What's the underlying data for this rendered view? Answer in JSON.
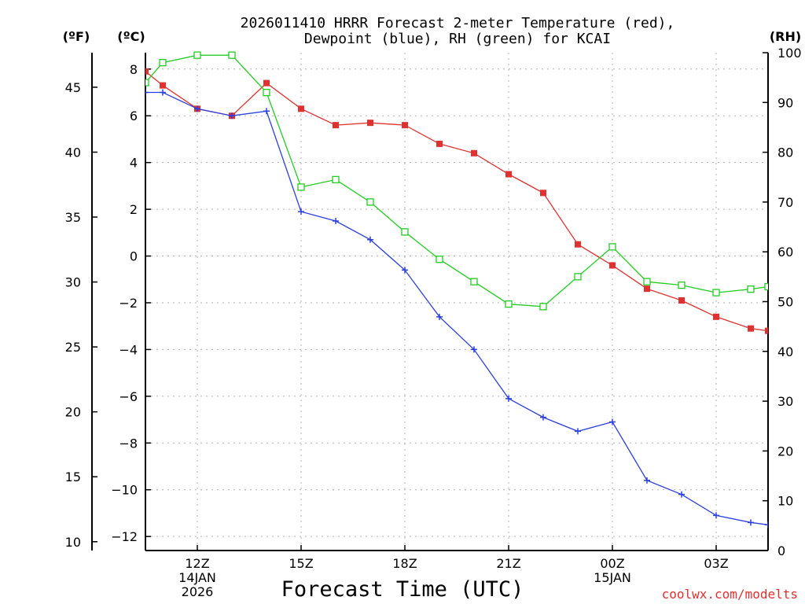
{
  "chart_data": {
    "type": "line",
    "title_lines": [
      "2026011410 HRRR Forecast 2-meter Temperature (red),",
      "Dewpoint (blue), RH (green) for KCAI"
    ],
    "xlabel": "Forecast Time (UTC)",
    "credit": "coolwx.com/modelts",
    "unit_labels": {
      "fahrenheit": "(ºF)",
      "celsius": "(ºC)",
      "rh": "(RH)"
    },
    "x_range": [
      10.5,
      28.5
    ],
    "celsius_range": [
      -12.6,
      8.7
    ],
    "rh_range": [
      0,
      100
    ],
    "left_f_ticks": [
      "10",
      "15",
      "20",
      "25",
      "30",
      "35",
      "40",
      "45"
    ],
    "celsius_ticks": [
      "8",
      "6",
      "4",
      "2",
      "0",
      "−2",
      "−4",
      "−6",
      "−8",
      "−10",
      "−12"
    ],
    "rh_ticks": [
      "100",
      "90",
      "80",
      "70",
      "60",
      "50",
      "40",
      "30",
      "20",
      "10",
      "0"
    ],
    "x_ticks": [
      {
        "hour": 12,
        "lines": [
          "12Z",
          "14JAN",
          "2026"
        ]
      },
      {
        "hour": 15,
        "lines": [
          "15Z"
        ]
      },
      {
        "hour": 18,
        "lines": [
          "18Z"
        ]
      },
      {
        "hour": 21,
        "lines": [
          "21Z"
        ]
      },
      {
        "hour": 24,
        "lines": [
          "00Z",
          "15JAN"
        ]
      },
      {
        "hour": 27,
        "lines": [
          "03Z"
        ]
      }
    ],
    "x": [
      10.5,
      11,
      12,
      13,
      14,
      15,
      16,
      17,
      18,
      19,
      20,
      21,
      22,
      23,
      24,
      25,
      26,
      27,
      28,
      28.5
    ],
    "series": [
      {
        "name": "Temperature",
        "unit": "C",
        "color": "#e03030",
        "marker": "filled-square",
        "values": [
          7.9,
          7.3,
          6.3,
          6.0,
          7.4,
          6.3,
          5.6,
          5.7,
          5.6,
          4.8,
          4.4,
          3.5,
          2.7,
          0.5,
          -0.4,
          -1.4,
          -1.9,
          -2.6,
          -3.1,
          -3.2
        ]
      },
      {
        "name": "Dewpoint",
        "unit": "C",
        "color": "#2b3fe0",
        "marker": "plus",
        "values": [
          7.0,
          7.0,
          6.3,
          6.0,
          6.2,
          1.9,
          1.5,
          0.7,
          -0.6,
          -2.6,
          -4.0,
          -6.1,
          -6.9,
          -7.5,
          -7.1,
          -9.6,
          -10.2,
          -11.1,
          -11.4,
          -11.5
        ]
      },
      {
        "name": "Relative Humidity",
        "unit": "%",
        "color": "#22cc22",
        "marker": "open-square",
        "values": [
          94,
          98,
          99.5,
          99.5,
          92,
          73,
          74.5,
          70,
          64,
          58.5,
          54,
          49.5,
          49,
          55,
          61,
          54,
          53.3,
          51.8,
          52.5,
          53
        ]
      }
    ]
  }
}
